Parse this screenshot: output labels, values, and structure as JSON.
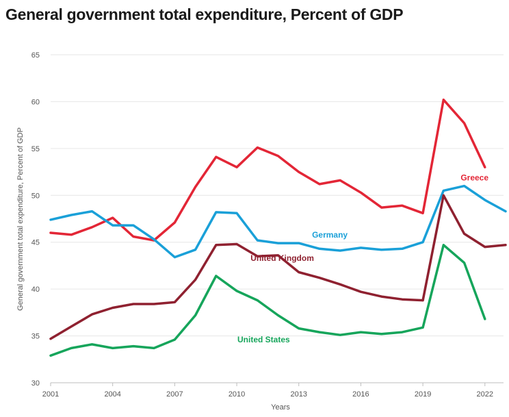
{
  "chart_data": {
    "type": "line",
    "title": "General government total expenditure, Percent of GDP",
    "xlabel": "Years",
    "ylabel": "General government total expenditure, Percent of GDP",
    "ylim": [
      30,
      65
    ],
    "yticks": [
      30,
      35,
      40,
      45,
      50,
      55,
      60,
      65
    ],
    "xlim": [
      2001,
      2022.9
    ],
    "xticks": [
      2001,
      2004,
      2007,
      2010,
      2013,
      2016,
      2019,
      2022
    ],
    "grid": true,
    "x": [
      2001,
      2002,
      2003,
      2004,
      2005,
      2006,
      2007,
      2008,
      2009,
      2010,
      2011,
      2012,
      2013,
      2014,
      2015,
      2016,
      2017,
      2018,
      2019,
      2020,
      2021,
      2022,
      2023
    ],
    "series": [
      {
        "name": "Greece",
        "color": "#e32636",
        "label_x": 2021.5,
        "label_y": 51.6,
        "values": [
          46.0,
          45.8,
          46.6,
          47.6,
          45.6,
          45.2,
          47.1,
          50.9,
          54.1,
          53.0,
          55.1,
          54.2,
          52.5,
          51.2,
          51.6,
          50.3,
          48.7,
          48.9,
          48.1,
          60.2,
          57.7,
          53.0,
          null
        ]
      },
      {
        "name": "Germany",
        "color": "#1aa0d8",
        "label_x": 2014.5,
        "label_y": 45.5,
        "values": [
          47.4,
          47.9,
          48.3,
          46.8,
          46.8,
          45.3,
          43.4,
          44.2,
          48.2,
          48.1,
          45.2,
          44.9,
          44.9,
          44.3,
          44.1,
          44.4,
          44.2,
          44.3,
          45.0,
          50.5,
          51.0,
          49.5,
          48.3
        ]
      },
      {
        "name": "United Kingdom",
        "color": "#8f2130",
        "label_x": 2012.2,
        "label_y": 43.0,
        "values": [
          34.7,
          36.0,
          37.3,
          38.0,
          38.4,
          38.4,
          38.6,
          41.0,
          44.7,
          44.8,
          43.5,
          43.6,
          41.8,
          41.2,
          40.5,
          39.7,
          39.2,
          38.9,
          38.8,
          50.0,
          45.9,
          44.5,
          44.7
        ]
      },
      {
        "name": "United States",
        "color": "#16a55b",
        "label_x": 2011.3,
        "label_y": 34.3,
        "values": [
          32.9,
          33.7,
          34.1,
          33.7,
          33.9,
          33.7,
          34.6,
          37.2,
          41.4,
          39.8,
          38.8,
          37.2,
          35.8,
          35.4,
          35.1,
          35.4,
          35.2,
          35.4,
          35.9,
          44.7,
          42.8,
          36.8,
          null
        ]
      }
    ]
  }
}
